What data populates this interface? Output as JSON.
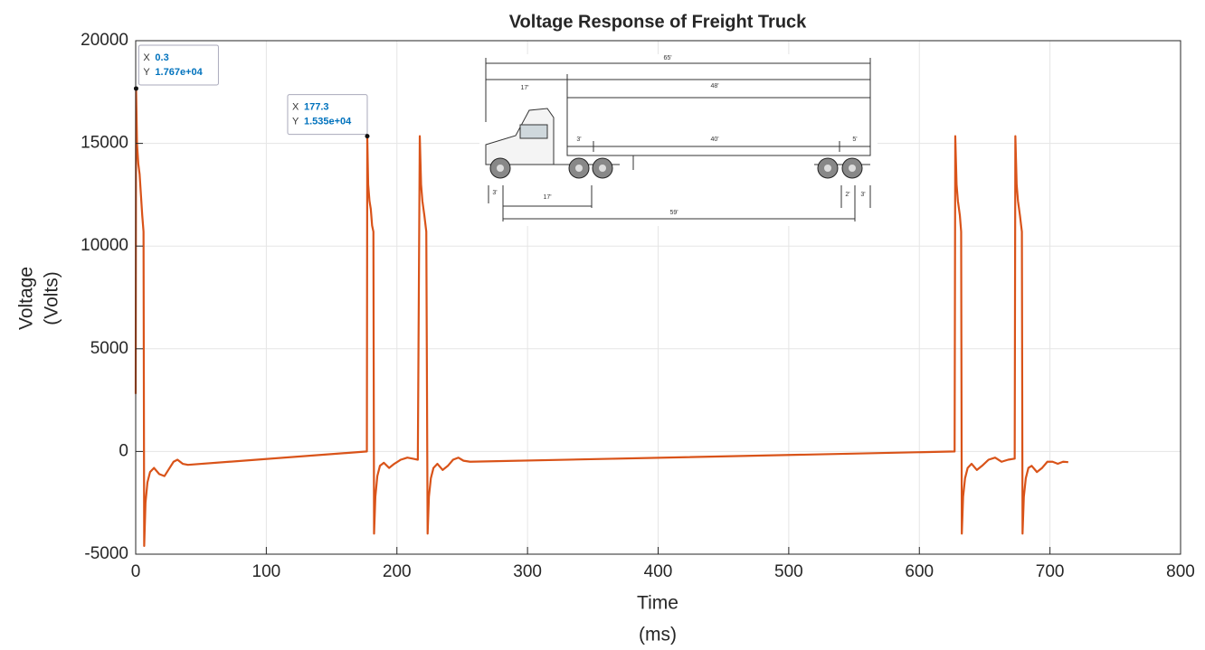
{
  "chart_data": {
    "type": "line",
    "title": "Voltage Response of Freight Truck",
    "xlabel": [
      "Time",
      "(ms)"
    ],
    "ylabel": [
      "Voltage",
      "(Volts)"
    ],
    "xlim": [
      0,
      800
    ],
    "ylim": [
      -5000,
      20000
    ],
    "xticks": [
      0,
      100,
      200,
      300,
      400,
      500,
      600,
      700,
      800
    ],
    "yticks": [
      -5000,
      0,
      5000,
      10000,
      15000,
      20000
    ],
    "grid": true,
    "series": [
      {
        "color": "#d95319",
        "x": [
          0,
          0.3,
          1,
          2,
          3,
          4,
          5,
          6,
          6.5,
          7.5,
          9,
          11,
          14,
          18,
          22,
          26,
          29,
          32,
          36,
          40,
          177,
          177.3,
          178,
          179,
          180,
          181,
          182,
          182.5,
          183.5,
          185,
          187,
          190,
          194,
          198,
          203,
          208,
          212,
          216,
          217.5,
          218.5,
          219.5,
          221,
          222.5,
          223.5,
          224.5,
          226,
          228,
          231,
          235,
          239,
          243,
          247,
          251,
          256,
          627,
          627.5,
          628.5,
          629.5,
          631,
          632,
          632.5,
          633.5,
          635,
          637,
          640,
          644,
          648,
          653,
          658,
          663,
          668,
          673,
          673.5,
          674.5,
          675.5,
          677,
          678.5,
          679,
          680,
          681.5,
          683.5,
          686,
          690,
          694,
          698,
          702,
          706,
          710,
          714
        ],
        "values": [
          2800,
          17670,
          15000,
          14000,
          13500,
          12500,
          11500,
          10700,
          -4600,
          -2500,
          -1500,
          -1000,
          -800,
          -1100,
          -1200,
          -800,
          -500,
          -400,
          -600,
          -650,
          0,
          15350,
          13000,
          12200,
          11800,
          11000,
          10700,
          -4000,
          -2200,
          -1200,
          -700,
          -550,
          -800,
          -600,
          -400,
          -300,
          -350,
          -400,
          15350,
          13000,
          12200,
          11500,
          10700,
          -4000,
          -2200,
          -1300,
          -800,
          -600,
          -900,
          -700,
          -400,
          -300,
          -450,
          -500,
          0,
          15350,
          13000,
          12200,
          11500,
          10700,
          -4000,
          -2200,
          -1300,
          -800,
          -600,
          -900,
          -700,
          -400,
          -300,
          -500,
          -400,
          -350,
          15350,
          13000,
          12200,
          11500,
          10700,
          -4000,
          -2200,
          -1300,
          -800,
          -700,
          -1000,
          -800,
          -500,
          -500,
          -600,
          -500,
          -520
        ]
      }
    ],
    "datatips": [
      {
        "x_name": "X",
        "y_name": "Y",
        "x": 0.3,
        "y": 17670,
        "x_label": "0.3",
        "y_label": "1.767e+04"
      },
      {
        "x_name": "X",
        "y_name": "Y",
        "x": 177.3,
        "y": 15350,
        "x_label": "177.3",
        "y_label": "1.535e+04"
      }
    ],
    "inset": {
      "labels": [
        "65'",
        "17'",
        "48'",
        "3'",
        "40'",
        "5'",
        "3'",
        "17'",
        "59'",
        "2'",
        "3'"
      ]
    }
  }
}
